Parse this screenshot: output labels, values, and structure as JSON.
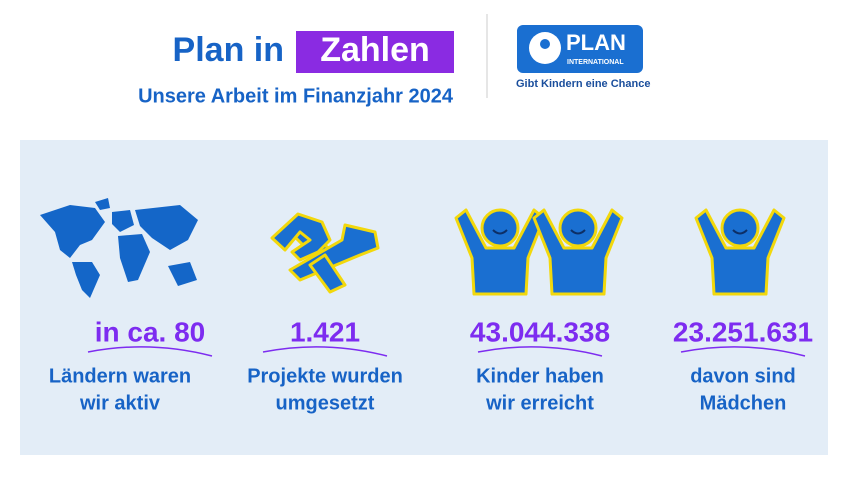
{
  "header": {
    "title": "Plan in",
    "title_highlight": "Zahlen",
    "subtitle": "Unsere Arbeit im Finanzjahr 2024"
  },
  "logo": {
    "name": "PLAN",
    "subname": "INTERNATIONAL",
    "tagline": "Gibt Kindern eine Chance"
  },
  "stats": [
    {
      "number": "in ca. 80",
      "lines": [
        "Ländern waren",
        "wir aktiv"
      ]
    },
    {
      "number": "1.421",
      "lines": [
        "Projekte wurden",
        "umgesetzt"
      ]
    },
    {
      "number": "43.044.338",
      "lines": [
        "Kinder haben",
        "wir erreicht"
      ]
    },
    {
      "number": "23.251.631",
      "lines": [
        "davon sind",
        "Mädchen"
      ]
    }
  ]
}
